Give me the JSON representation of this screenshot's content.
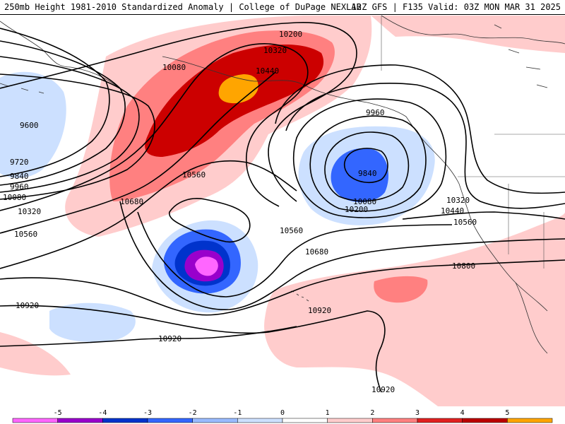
{
  "header": {
    "title": "250mb Height 1981-2010 Standardized Anomaly | College of DuPage NEXLAB",
    "run_info": "12Z GFS | F135 Valid: 03Z MON MAR 31 2025"
  },
  "map": {
    "contour_labels": [
      "10200",
      "10320",
      "10440",
      "10080",
      "9600",
      "9720",
      "9840",
      "9960",
      "10080",
      "10320",
      "10560",
      "10680",
      "10560",
      "9960",
      "9840",
      "10080",
      "10200",
      "10320",
      "10440",
      "10560",
      "10560",
      "10680",
      "10800",
      "10920",
      "10920",
      "10920",
      "10920"
    ]
  },
  "colorbar": {
    "tick_labels": [
      "-5",
      "-4",
      "-3",
      "-2",
      "-1",
      "0",
      "1",
      "2",
      "3",
      "4",
      "5"
    ],
    "colors": [
      "#ff66ff",
      "#9900cc",
      "#0033cc",
      "#3366ff",
      "#99bbff",
      "#cce0ff",
      "#ffffff",
      "#ffcccc",
      "#ff8080",
      "#e02020",
      "#bb0000",
      "#ffa500"
    ]
  }
}
